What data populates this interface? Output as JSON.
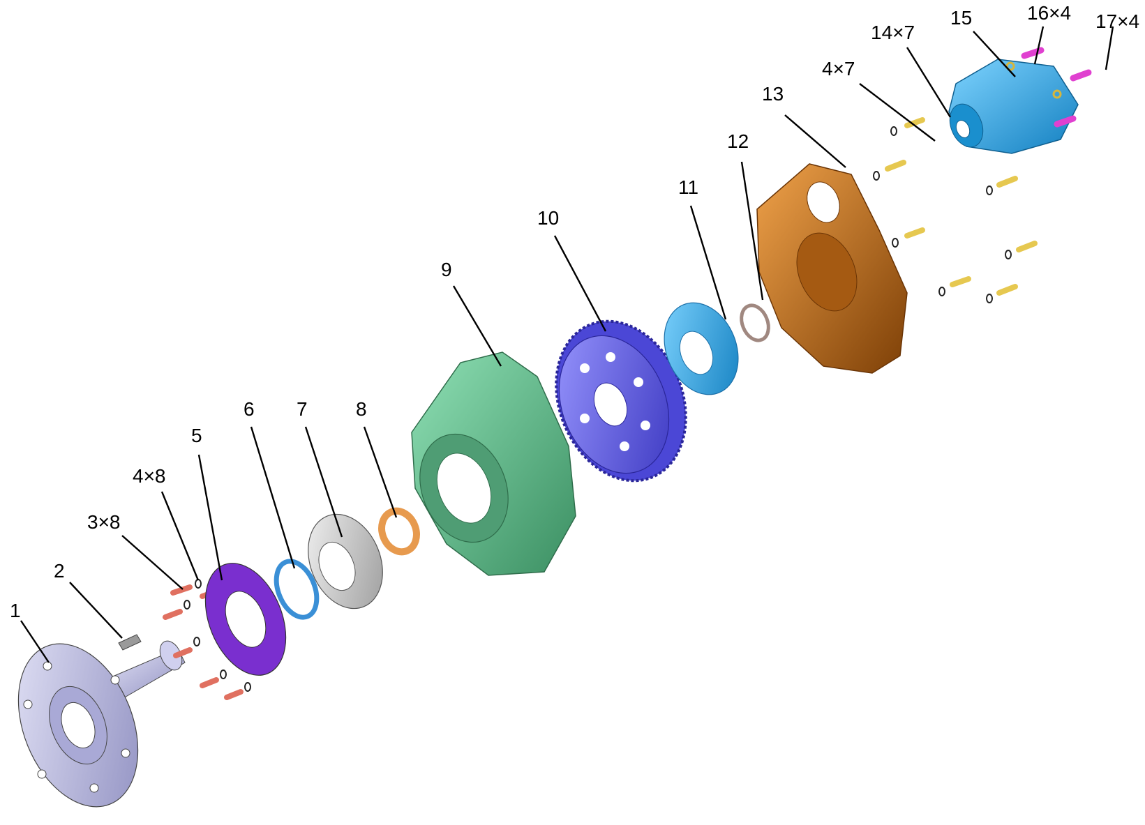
{
  "callouts": {
    "c1": "1",
    "c2": "2",
    "c3x8": "3×8",
    "c4x8": "4×8",
    "c5": "5",
    "c6": "6",
    "c7": "7",
    "c8": "8",
    "c9": "9",
    "c10": "10",
    "c11": "11",
    "c12": "12",
    "c13": "13",
    "c4x7": "4×7",
    "c14x7": "14×7",
    "c15": "15",
    "c16x4": "16×4",
    "c17x4": "17×4"
  },
  "colors": {
    "flange_shaft": "#b9b9e3",
    "key": "#9a9a9a",
    "bolt_red": "#e07060",
    "washer": "#222222",
    "retainer_plate": "#7a2fcf",
    "seal_ring_blue": "#3a8fd6",
    "bearing_grey": "#c8c8c8",
    "bushing_orange": "#e79a4e",
    "housing_green": "#5fb889",
    "gear_purple": "#5a56e6",
    "bearing_blue": "#6ab8ec",
    "snap_ring": "#a08880",
    "cover_bronze": "#c26a18",
    "bolt_yellow": "#e6c850",
    "motor_cyan": "#2aa3e0",
    "screw_magenta": "#e040d0"
  }
}
